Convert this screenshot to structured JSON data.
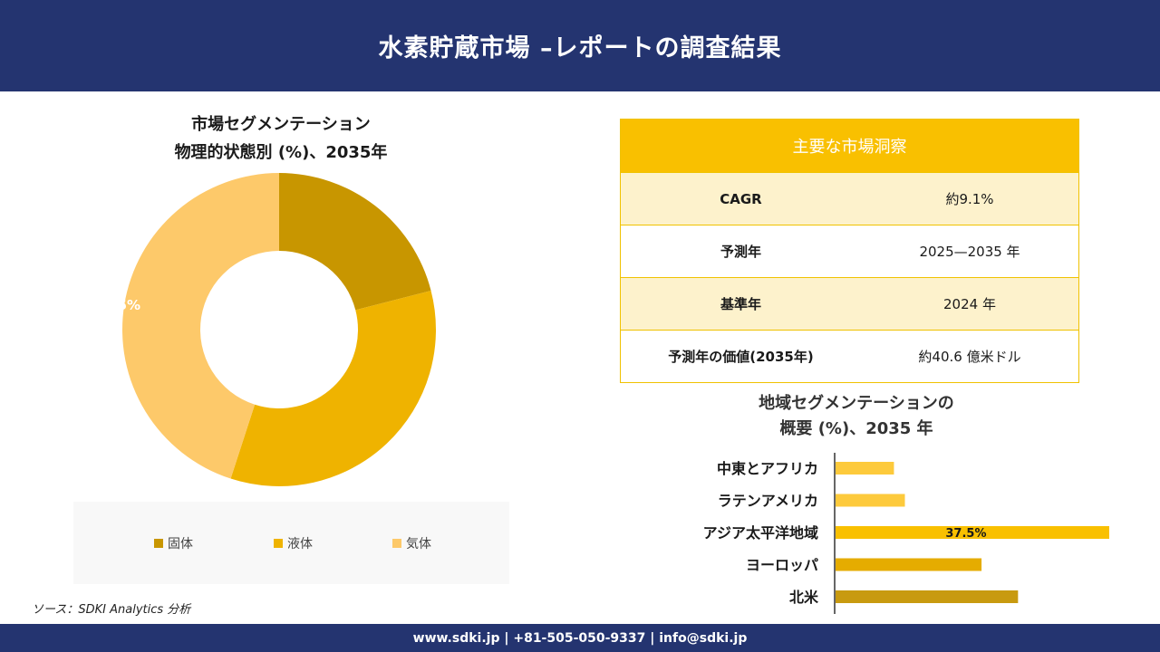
{
  "header": {
    "title": "水素貯蔵市場 –レポートの調査結果"
  },
  "donut": {
    "title_line1": "市場セグメンテーション",
    "title_line2": "物理的状態別 (%)、2035年"
  },
  "insights": {
    "heading": "主要な市場洞察",
    "rows": [
      {
        "key": "CAGR",
        "value": "約9.1%"
      },
      {
        "key": "予測年",
        "value": "2025—2035 年"
      },
      {
        "key": "基準年",
        "value": "2024 年"
      },
      {
        "key": "予測年の価値(2035年)",
        "value": "約40.6 億米ドル"
      }
    ]
  },
  "region": {
    "title_line1": "地域セグメンテーションの",
    "title_line2": "概要 (%)、2035 年"
  },
  "source": "ソース：SDKI Analytics 分析",
  "footer": {
    "contact": "www.sdki.jp | +81-505-050-9337 | info@sdki.jp"
  },
  "colors": {
    "navy": "#243470",
    "solid": "#c89600",
    "liquid": "#efb300",
    "gas": "#fdc96a",
    "bar_gold": "#f9c000",
    "bar_light": "#fdca3c",
    "bar_mid": "#e5ac00",
    "bar_dark": "#c89a10"
  },
  "chart_data": [
    {
      "type": "pie",
      "title": "市場セグメンテーション 物理的状態別 (%)、2035年",
      "categories": [
        "固体",
        "液体",
        "気体"
      ],
      "values": [
        21,
        34,
        45
      ],
      "data_labels": [
        "",
        "",
        "45%"
      ],
      "legend_position": "bottom",
      "donut": true
    },
    {
      "type": "bar",
      "orientation": "horizontal",
      "title": "地域セグメンテーションの 概要 (%)、2035 年",
      "categories": [
        "中東とアフリカ",
        "ラテンアメリカ",
        "アジア太平洋地域",
        "ヨーロッパ",
        "北米"
      ],
      "values": [
        8,
        9.5,
        37.5,
        20,
        25
      ],
      "data_labels": [
        "",
        "",
        "37.5%",
        "",
        ""
      ],
      "xlim": [
        0,
        37.5
      ],
      "grid": false
    }
  ]
}
